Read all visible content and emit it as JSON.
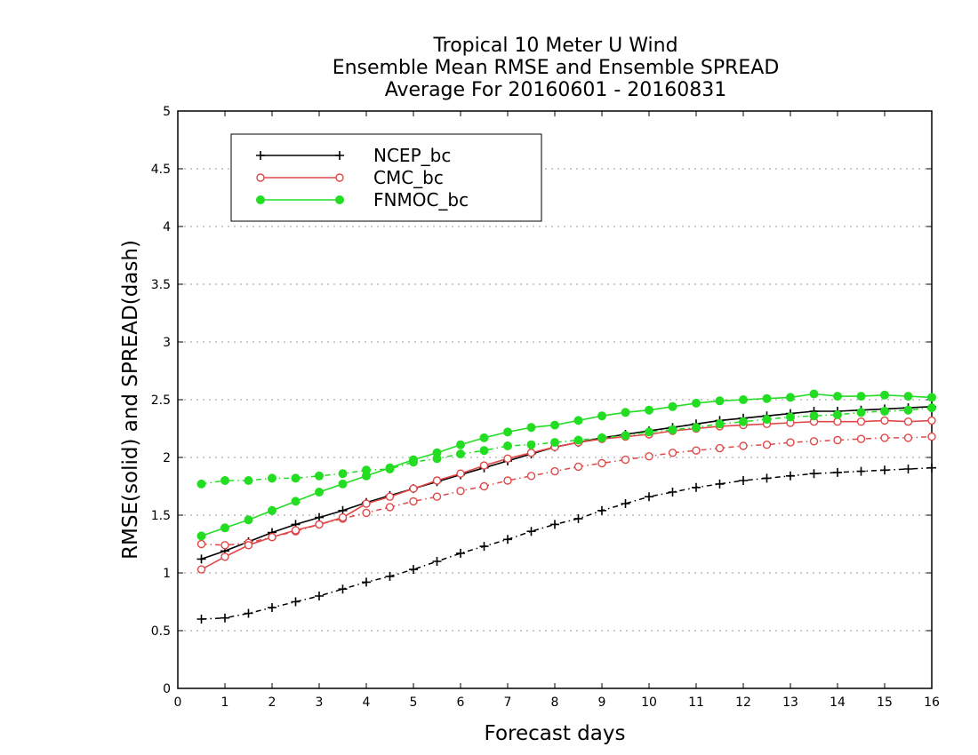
{
  "chart_data": {
    "type": "line",
    "title": [
      "Tropical 10 Meter U Wind",
      "Ensemble Mean RMSE and Ensemble SPREAD",
      "Average For 20160601 - 20160831"
    ],
    "xlabel": "Forecast days",
    "ylabel": "RMSE(solid) and SPREAD(dash)",
    "xlim": [
      0,
      16
    ],
    "ylim": [
      0,
      5
    ],
    "xticks": [
      "0",
      "1",
      "2",
      "3",
      "4",
      "5",
      "6",
      "7",
      "8",
      "9",
      "10",
      "11",
      "12",
      "13",
      "14",
      "15",
      "16"
    ],
    "yticks": [
      "0",
      "0.5",
      "1",
      "1.5",
      "2",
      "2.5",
      "3",
      "3.5",
      "4",
      "4.5",
      "5"
    ],
    "grid": "horizontal dotted",
    "legend_position": "top-left",
    "x": [
      0.5,
      1,
      1.5,
      2,
      2.5,
      3,
      3.5,
      4,
      4.5,
      5,
      5.5,
      6,
      6.5,
      7,
      7.5,
      8,
      8.5,
      9,
      9.5,
      10,
      10.5,
      11,
      11.5,
      12,
      12.5,
      13,
      13.5,
      14,
      14.5,
      15,
      15.5,
      16
    ],
    "series": [
      {
        "name": "NCEP_bc",
        "color": "#000000",
        "marker": "plus",
        "rmse": [
          1.12,
          1.19,
          1.27,
          1.35,
          1.42,
          1.48,
          1.54,
          1.61,
          1.67,
          1.73,
          1.79,
          1.85,
          1.91,
          1.97,
          2.03,
          2.09,
          2.13,
          2.17,
          2.2,
          2.23,
          2.26,
          2.29,
          2.32,
          2.34,
          2.36,
          2.38,
          2.4,
          2.4,
          2.41,
          2.42,
          2.43,
          2.44
        ],
        "spread": [
          0.6,
          0.61,
          0.65,
          0.7,
          0.75,
          0.8,
          0.86,
          0.92,
          0.97,
          1.03,
          1.1,
          1.17,
          1.23,
          1.29,
          1.36,
          1.42,
          1.47,
          1.54,
          1.6,
          1.66,
          1.7,
          1.74,
          1.77,
          1.8,
          1.82,
          1.84,
          1.86,
          1.87,
          1.88,
          1.89,
          1.9,
          1.91
        ]
      },
      {
        "name": "CMC_bc",
        "color": "#e04848",
        "marker": "open-circle",
        "rmse": [
          1.03,
          1.14,
          1.24,
          1.31,
          1.37,
          1.42,
          1.48,
          1.6,
          1.66,
          1.73,
          1.8,
          1.86,
          1.93,
          1.99,
          2.04,
          2.09,
          2.13,
          2.16,
          2.18,
          2.2,
          2.23,
          2.25,
          2.27,
          2.28,
          2.29,
          2.3,
          2.31,
          2.31,
          2.31,
          2.32,
          2.31,
          2.32
        ],
        "spread": [
          1.25,
          1.24,
          1.26,
          1.31,
          1.36,
          1.42,
          1.47,
          1.52,
          1.57,
          1.62,
          1.66,
          1.71,
          1.75,
          1.8,
          1.84,
          1.88,
          1.92,
          1.95,
          1.98,
          2.01,
          2.04,
          2.06,
          2.08,
          2.1,
          2.11,
          2.13,
          2.14,
          2.15,
          2.16,
          2.17,
          2.17,
          2.18
        ]
      },
      {
        "name": "FNMOC_bc",
        "color": "#22dd22",
        "marker": "filled-circle",
        "rmse": [
          1.32,
          1.39,
          1.46,
          1.54,
          1.62,
          1.7,
          1.77,
          1.84,
          1.91,
          1.98,
          2.04,
          2.11,
          2.17,
          2.22,
          2.26,
          2.28,
          2.32,
          2.36,
          2.39,
          2.41,
          2.44,
          2.47,
          2.49,
          2.5,
          2.51,
          2.52,
          2.55,
          2.53,
          2.53,
          2.54,
          2.53,
          2.52
        ],
        "spread": [
          1.77,
          1.8,
          1.8,
          1.82,
          1.82,
          1.84,
          1.86,
          1.89,
          1.9,
          1.96,
          1.99,
          2.03,
          2.06,
          2.1,
          2.11,
          2.13,
          2.15,
          2.17,
          2.19,
          2.22,
          2.24,
          2.26,
          2.29,
          2.31,
          2.33,
          2.35,
          2.36,
          2.37,
          2.39,
          2.4,
          2.41,
          2.43
        ]
      }
    ]
  }
}
